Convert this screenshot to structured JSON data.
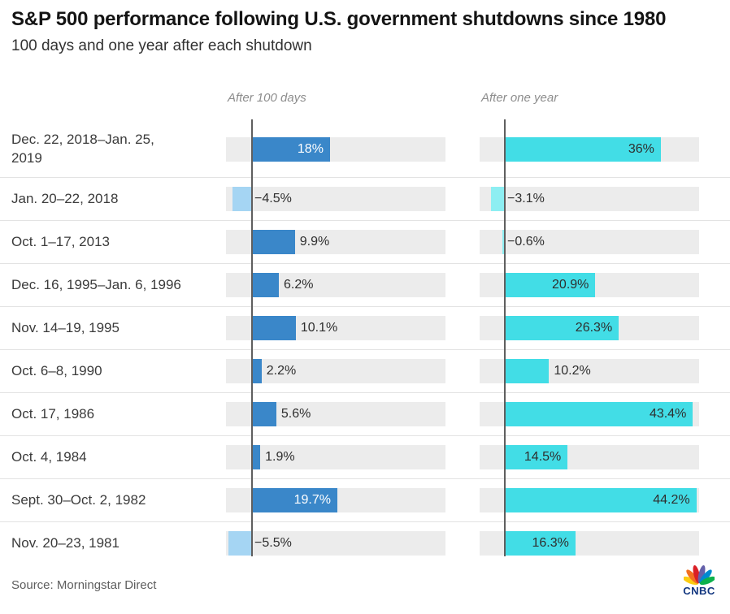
{
  "title": "S&P 500 performance following U.S. government shutdowns since 1980",
  "subtitle": "100 days and one year after each shutdown",
  "source": "Source: Morningstar Direct",
  "brand": {
    "name": "CNBC",
    "text_color": "#12367f",
    "peacock_colors": [
      "#fccc12",
      "#f37021",
      "#da1f26",
      "#6460aa",
      "#0089d0",
      "#0db14b"
    ]
  },
  "columns": [
    "After 100 days",
    "After one year"
  ],
  "chart_data": {
    "type": "bar",
    "orientation": "horizontal",
    "value_unit": "percent",
    "categories": [
      "Dec. 22, 2018–Jan. 25, 2019",
      "Jan. 20–22, 2018",
      "Oct. 1–17, 2013",
      "Dec. 16, 1995–Jan. 6, 1996",
      "Nov. 14–19, 1995",
      "Oct. 6–8, 1990",
      "Oct. 17, 1986",
      "Oct. 4, 1984",
      "Sept. 30–Oct. 2, 1982",
      "Nov. 20–23, 1981"
    ],
    "series": [
      {
        "name": "After 100 days",
        "values": [
          18,
          -4.5,
          9.9,
          6.2,
          10.1,
          2.2,
          5.6,
          1.9,
          19.7,
          -5.5
        ],
        "labels": [
          "18%",
          "−4.5%",
          "9.9%",
          "6.2%",
          "10.1%",
          "2.2%",
          "5.6%",
          "1.9%",
          "19.7%",
          "−5.5%"
        ],
        "bar_color": "#3a87c9",
        "negative_bar_color": "#a5d5f3",
        "inside_label_color": "#ffffff"
      },
      {
        "name": "After one year",
        "values": [
          36,
          -3.1,
          -0.6,
          20.9,
          26.3,
          10.2,
          43.4,
          14.5,
          44.2,
          16.3
        ],
        "labels": [
          "36%",
          "−3.1%",
          "−0.6%",
          "20.9%",
          "26.3%",
          "10.2%",
          "43.4%",
          "14.5%",
          "44.2%",
          "16.3%"
        ],
        "bar_color": "#42dde6",
        "negative_bar_color": "#8deef2",
        "inside_label_color": "#2e2e2e"
      }
    ],
    "axis": {
      "zero_baseline": true,
      "track_color": "#ececec",
      "approx_range_percent": [
        -6,
        45
      ],
      "grid": false,
      "legend": false
    }
  }
}
